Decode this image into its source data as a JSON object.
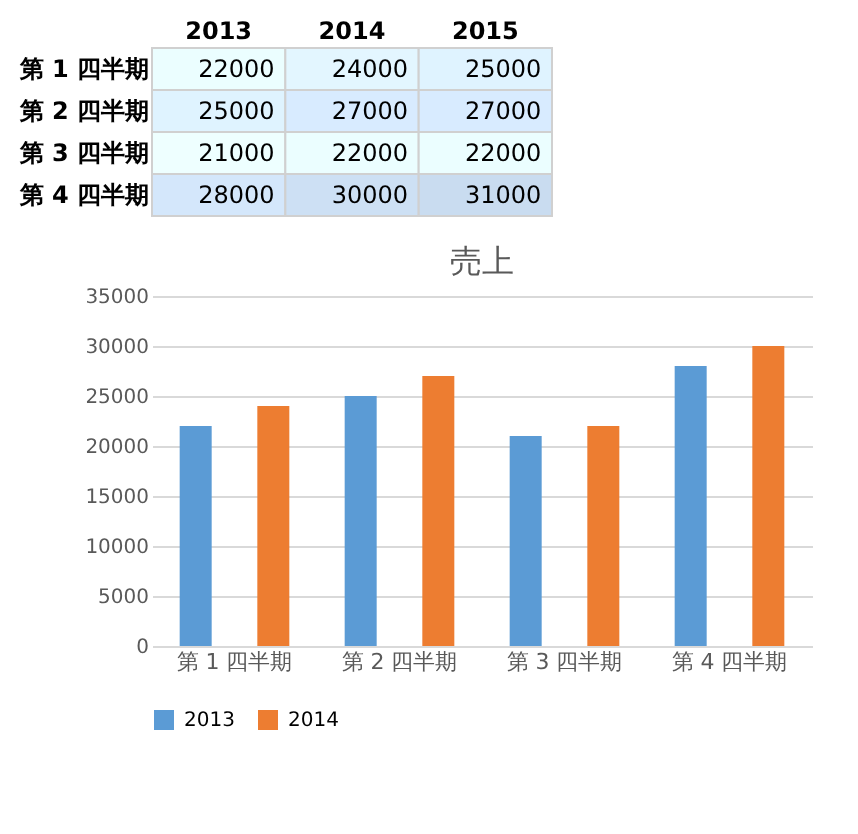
{
  "chart_data": [
    {
      "type": "heatmap",
      "categories": [
        "2013",
        "2014",
        "2015"
      ],
      "y_categories": [
        "第 1 四半期",
        "第 2 四半期",
        "第 3 四半期",
        "第 4 四半期"
      ],
      "cells": [
        [
          22000,
          24000,
          25000
        ],
        [
          25000,
          27000,
          27000
        ],
        [
          21000,
          22000,
          22000
        ],
        [
          28000,
          30000,
          31000
        ]
      ],
      "data_labels": true
    },
    {
      "type": "bar",
      "title": "売上",
      "categories": [
        "第 1 四半期",
        "第 2 四半期",
        "第 3 四半期",
        "第 4 四半期"
      ],
      "series": [
        {
          "name": "2013",
          "color": "#5b9bd5",
          "values": [
            22000,
            25000,
            21000,
            28000
          ]
        },
        {
          "name": "2014",
          "color": "#ed7d31",
          "values": [
            24000,
            27000,
            22000,
            30000
          ]
        }
      ],
      "ylim": [
        0,
        35000
      ],
      "yticks": [
        0,
        5000,
        10000,
        15000,
        20000,
        25000,
        30000,
        35000
      ],
      "grid": "y",
      "legend": "bottom"
    }
  ]
}
